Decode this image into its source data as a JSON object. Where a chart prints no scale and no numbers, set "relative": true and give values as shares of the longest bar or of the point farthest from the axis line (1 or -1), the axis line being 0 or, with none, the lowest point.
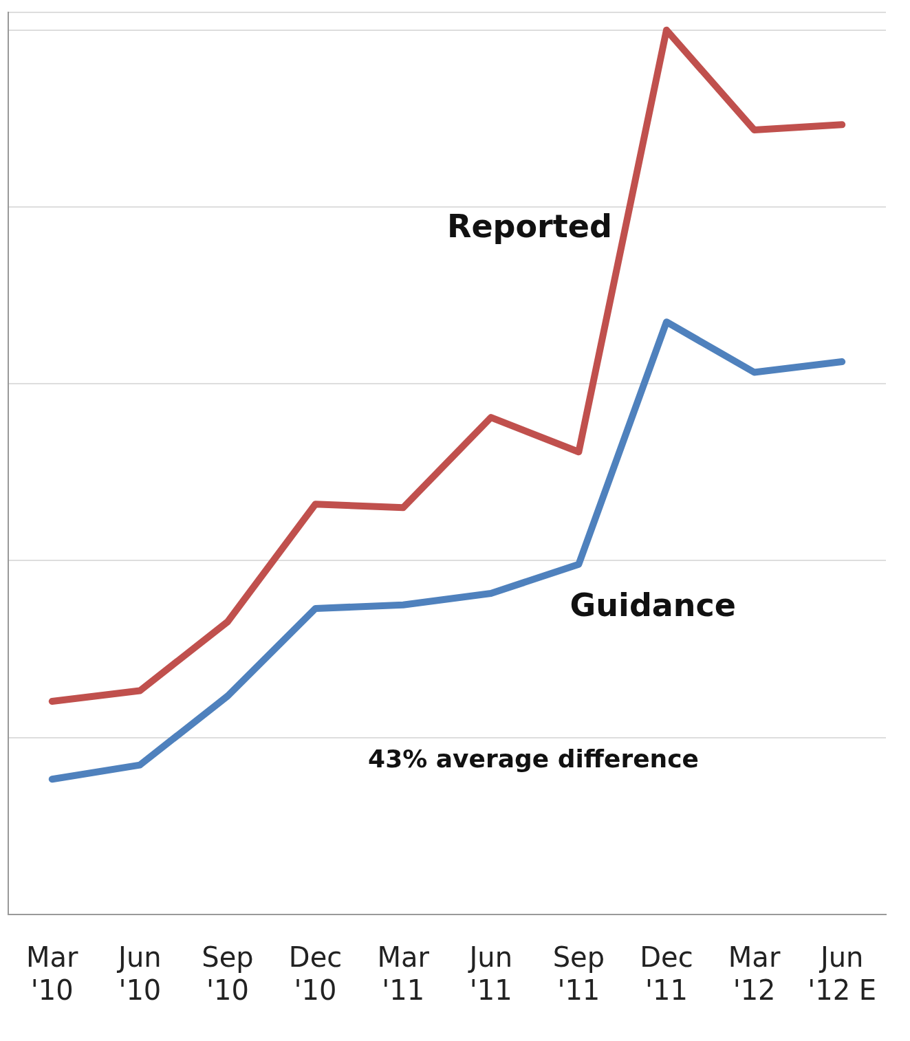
{
  "chart_data": {
    "type": "line",
    "relative": true,
    "categories": [
      "Mar '10",
      "Jun '10",
      "Sep '10",
      "Dec '10",
      "Mar '11",
      "Jun '11",
      "Sep '11",
      "Dec '11",
      "Mar '12",
      "Jun '12 E"
    ],
    "series": [
      {
        "name": "Reported",
        "color": "#c0504d",
        "values": [
          0.241,
          0.253,
          0.331,
          0.464,
          0.46,
          0.562,
          0.523,
          1,
          0.887,
          0.893
        ]
      },
      {
        "name": "Guidance",
        "color": "#4f81bd",
        "values": [
          0.153,
          0.169,
          0.247,
          0.346,
          0.35,
          0.363,
          0.396,
          0.67,
          0.613,
          0.625
        ]
      }
    ],
    "annotations": [
      "43% average difference"
    ],
    "grid": "y",
    "legend": false,
    "marker": "none",
    "line_style": "solid"
  }
}
